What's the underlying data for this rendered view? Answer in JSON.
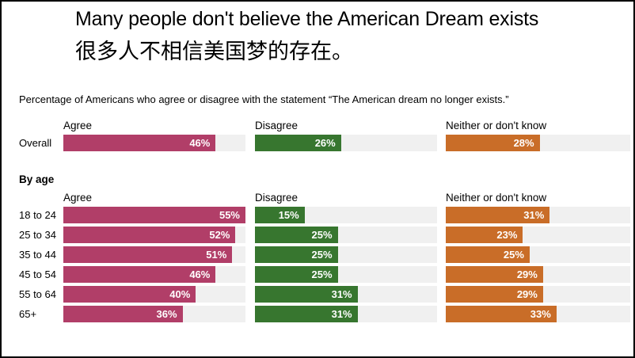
{
  "colors": {
    "agree": "#b13e68",
    "disagree": "#37762f",
    "neither": "#c96d28",
    "track": "#f0f0f0",
    "value_label": "#ffffff",
    "frame_border": "#000000"
  },
  "chart_data": {
    "type": "bar",
    "orientation": "horizontal",
    "title": "Many people don't believe the American Dream exists",
    "title_zh": "很多人不相信美国梦的存在。",
    "subtitle": "Percentage of Americans who agree or disagree with the statement “The American dream no longer exists.”",
    "columns": [
      "Agree",
      "Disagree",
      "Neither or don't know"
    ],
    "value_suffix": "%",
    "xlim": [
      0,
      55
    ],
    "grid": false,
    "legend_position": "column-headers",
    "sections": [
      {
        "label": "",
        "rows": [
          {
            "label": "Overall",
            "values": [
              46,
              26,
              28
            ]
          }
        ]
      },
      {
        "label": "By age",
        "rows": [
          {
            "label": "18 to 24",
            "values": [
              55,
              15,
              31
            ]
          },
          {
            "label": "25 to 34",
            "values": [
              52,
              25,
              23
            ]
          },
          {
            "label": "35 to 44",
            "values": [
              51,
              25,
              25
            ]
          },
          {
            "label": "45 to 54",
            "values": [
              46,
              25,
              29
            ]
          },
          {
            "label": "55 to 64",
            "values": [
              40,
              31,
              29
            ]
          },
          {
            "label": "65+",
            "values": [
              36,
              31,
              33
            ]
          }
        ]
      }
    ]
  }
}
